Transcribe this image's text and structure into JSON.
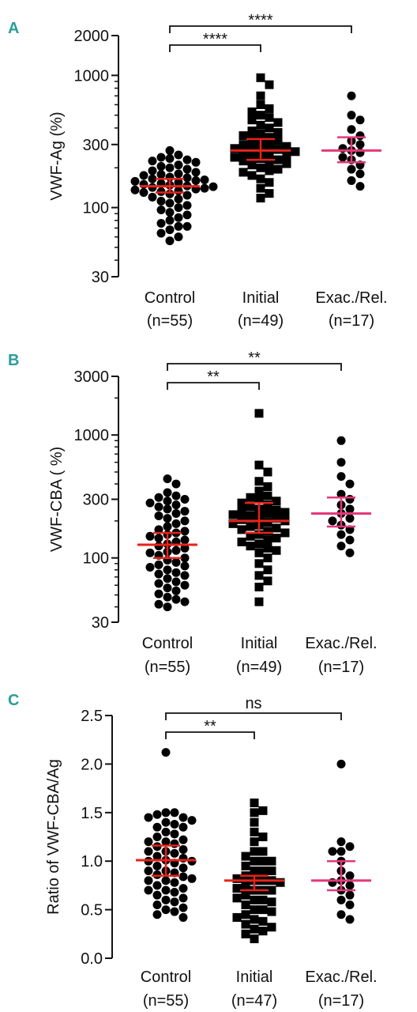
{
  "chart_data": [
    {
      "panel": "A",
      "type": "scatter",
      "ylabel": "VWF-Ag (%)",
      "yscale": "log",
      "ylim": [
        30,
        2000
      ],
      "yticks": [
        {
          "v": 30,
          "label": "30"
        },
        {
          "v": 100,
          "label": "100"
        },
        {
          "v": 300,
          "label": "300"
        },
        {
          "v": 1000,
          "label": "1000"
        },
        {
          "v": 2000,
          "label": "2000"
        }
      ],
      "groups": [
        {
          "label": "Control",
          "n_label": "(n=55)",
          "marker": "circle",
          "median": 145,
          "ci": [
            130,
            165
          ],
          "color": "#e8221b",
          "values": [
            270,
            250,
            240,
            235,
            230,
            225,
            220,
            210,
            205,
            200,
            195,
            190,
            185,
            180,
            178,
            175,
            170,
            168,
            165,
            162,
            160,
            158,
            155,
            152,
            150,
            148,
            146,
            144,
            142,
            140,
            138,
            136,
            134,
            132,
            130,
            127,
            124,
            120,
            116,
            112,
            108,
            104,
            100,
            96,
            92,
            88,
            84,
            80,
            76,
            72,
            68,
            64,
            60,
            56,
            72
          ]
        },
        {
          "label": "Initial",
          "n_label": "(n=49)",
          "marker": "square",
          "median": 270,
          "ci": [
            230,
            330
          ],
          "color": "#e8221b",
          "values": [
            960,
            850,
            700,
            600,
            560,
            530,
            500,
            480,
            460,
            440,
            420,
            400,
            380,
            370,
            360,
            350,
            340,
            330,
            320,
            310,
            300,
            295,
            290,
            285,
            280,
            275,
            270,
            265,
            260,
            255,
            250,
            245,
            240,
            235,
            230,
            225,
            220,
            215,
            210,
            200,
            195,
            190,
            185,
            175,
            165,
            155,
            140,
            128,
            118
          ]
        },
        {
          "label": "Exac./Rel.",
          "n_label": "(n=17)",
          "marker": "circle",
          "median": 270,
          "ci": [
            220,
            340
          ],
          "color": "#e5387a",
          "values": [
            700,
            500,
            460,
            390,
            350,
            320,
            300,
            280,
            270,
            260,
            240,
            230,
            210,
            195,
            180,
            160,
            145
          ]
        }
      ],
      "comparisons": [
        {
          "from": 0,
          "to": 1,
          "label": "****"
        },
        {
          "from": 0,
          "to": 2,
          "label": "****"
        }
      ]
    },
    {
      "panel": "B",
      "type": "scatter",
      "ylabel": "VWF-CBA ( %)",
      "yscale": "log",
      "ylim": [
        30,
        3000
      ],
      "yticks": [
        {
          "v": 30,
          "label": "30"
        },
        {
          "v": 100,
          "label": "100"
        },
        {
          "v": 300,
          "label": "300"
        },
        {
          "v": 1000,
          "label": "1000"
        },
        {
          "v": 3000,
          "label": "3000"
        }
      ],
      "groups": [
        {
          "label": "Control",
          "n_label": "(n=55)",
          "marker": "circle",
          "median": 128,
          "ci": [
            100,
            160
          ],
          "color": "#e8221b",
          "values": [
            440,
            400,
            340,
            320,
            310,
            300,
            290,
            280,
            270,
            260,
            250,
            240,
            230,
            220,
            210,
            200,
            190,
            180,
            170,
            165,
            160,
            155,
            150,
            145,
            140,
            135,
            130,
            125,
            120,
            115,
            110,
            105,
            100,
            96,
            92,
            88,
            84,
            80,
            76,
            72,
            68,
            64,
            60,
            57,
            54,
            51,
            48,
            46,
            44,
            42,
            40,
            62,
            74,
            86,
            112
          ]
        },
        {
          "label": "Initial",
          "n_label": "(n=49)",
          "marker": "square",
          "median": 200,
          "ci": [
            160,
            280
          ],
          "color": "#e8221b",
          "values": [
            1500,
            570,
            500,
            420,
            380,
            350,
            320,
            310,
            300,
            290,
            280,
            270,
            260,
            250,
            245,
            240,
            235,
            230,
            225,
            220,
            215,
            210,
            205,
            200,
            195,
            190,
            185,
            180,
            175,
            170,
            165,
            160,
            155,
            150,
            145,
            140,
            135,
            130,
            125,
            120,
            115,
            110,
            100,
            90,
            80,
            72,
            65,
            58,
            44
          ]
        },
        {
          "label": "Exac./Rel.",
          "n_label": "(n=17)",
          "marker": "circle",
          "median": 230,
          "ci": [
            180,
            310
          ],
          "color": "#e5387a",
          "values": [
            900,
            600,
            460,
            400,
            330,
            300,
            270,
            250,
            230,
            210,
            200,
            185,
            170,
            155,
            140,
            125,
            110
          ]
        }
      ],
      "comparisons": [
        {
          "from": 0,
          "to": 1,
          "label": "**"
        },
        {
          "from": 0,
          "to": 2,
          "label": "**"
        }
      ]
    },
    {
      "panel": "C",
      "type": "scatter",
      "ylabel": "Ratio of VWF-CBA/Ag",
      "yscale": "linear",
      "ylim": [
        0.0,
        2.5
      ],
      "yticks": [
        {
          "v": 0.0,
          "label": "0.0"
        },
        {
          "v": 0.5,
          "label": "0.5"
        },
        {
          "v": 1.0,
          "label": "1.0"
        },
        {
          "v": 1.5,
          "label": "1.5"
        },
        {
          "v": 2.0,
          "label": "2.0"
        },
        {
          "v": 2.5,
          "label": "2.5"
        }
      ],
      "groups": [
        {
          "label": "Control",
          "n_label": "(n=55)",
          "marker": "circle",
          "median": 1.01,
          "ci": [
            0.85,
            1.16
          ],
          "color": "#e8221b",
          "values": [
            2.12,
            1.5,
            1.48,
            1.45,
            1.42,
            1.4,
            1.38,
            1.35,
            1.3,
            1.28,
            1.25,
            1.22,
            1.2,
            1.18,
            1.15,
            1.12,
            1.1,
            1.08,
            1.05,
            1.03,
            1.01,
            1.0,
            0.98,
            0.95,
            0.93,
            0.9,
            0.88,
            0.86,
            0.84,
            0.82,
            0.8,
            0.78,
            0.75,
            0.72,
            0.7,
            0.68,
            0.65,
            0.62,
            0.6,
            0.58,
            0.55,
            0.52,
            0.5,
            0.48,
            0.45,
            0.42,
            1.5,
            1.45,
            1.35,
            1.2,
            1.1,
            1.0,
            0.9,
            0.8,
            0.7
          ]
        },
        {
          "label": "Initial",
          "n_label": "(n=47)",
          "marker": "square",
          "median": 0.8,
          "ci": [
            0.7,
            0.85
          ],
          "color": "#e8221b",
          "values": [
            1.6,
            1.52,
            1.5,
            1.4,
            1.3,
            1.25,
            1.2,
            1.1,
            1.1,
            1.05,
            1.0,
            1.0,
            0.95,
            0.9,
            0.9,
            0.85,
            0.82,
            0.8,
            0.8,
            0.78,
            0.75,
            0.72,
            0.7,
            0.7,
            0.65,
            0.62,
            0.6,
            0.58,
            0.55,
            0.5,
            0.5,
            0.48,
            0.45,
            0.42,
            0.4,
            0.38,
            0.35,
            0.32,
            0.3,
            0.28,
            0.25,
            0.2,
            0.9,
            0.8,
            0.7,
            0.6,
            1.0
          ]
        },
        {
          "label": "Exac./Rel.",
          "n_label": "(n=17)",
          "marker": "circle",
          "median": 0.8,
          "ci": [
            0.7,
            1.0
          ],
          "color": "#e5387a",
          "values": [
            2.0,
            1.2,
            1.15,
            1.1,
            1.1,
            1.0,
            0.9,
            0.85,
            0.8,
            0.78,
            0.75,
            0.7,
            0.65,
            0.6,
            0.55,
            0.45,
            0.4
          ]
        }
      ],
      "comparisons": [
        {
          "from": 0,
          "to": 1,
          "label": "**"
        },
        {
          "from": 0,
          "to": 2,
          "label": "ns"
        }
      ]
    }
  ]
}
